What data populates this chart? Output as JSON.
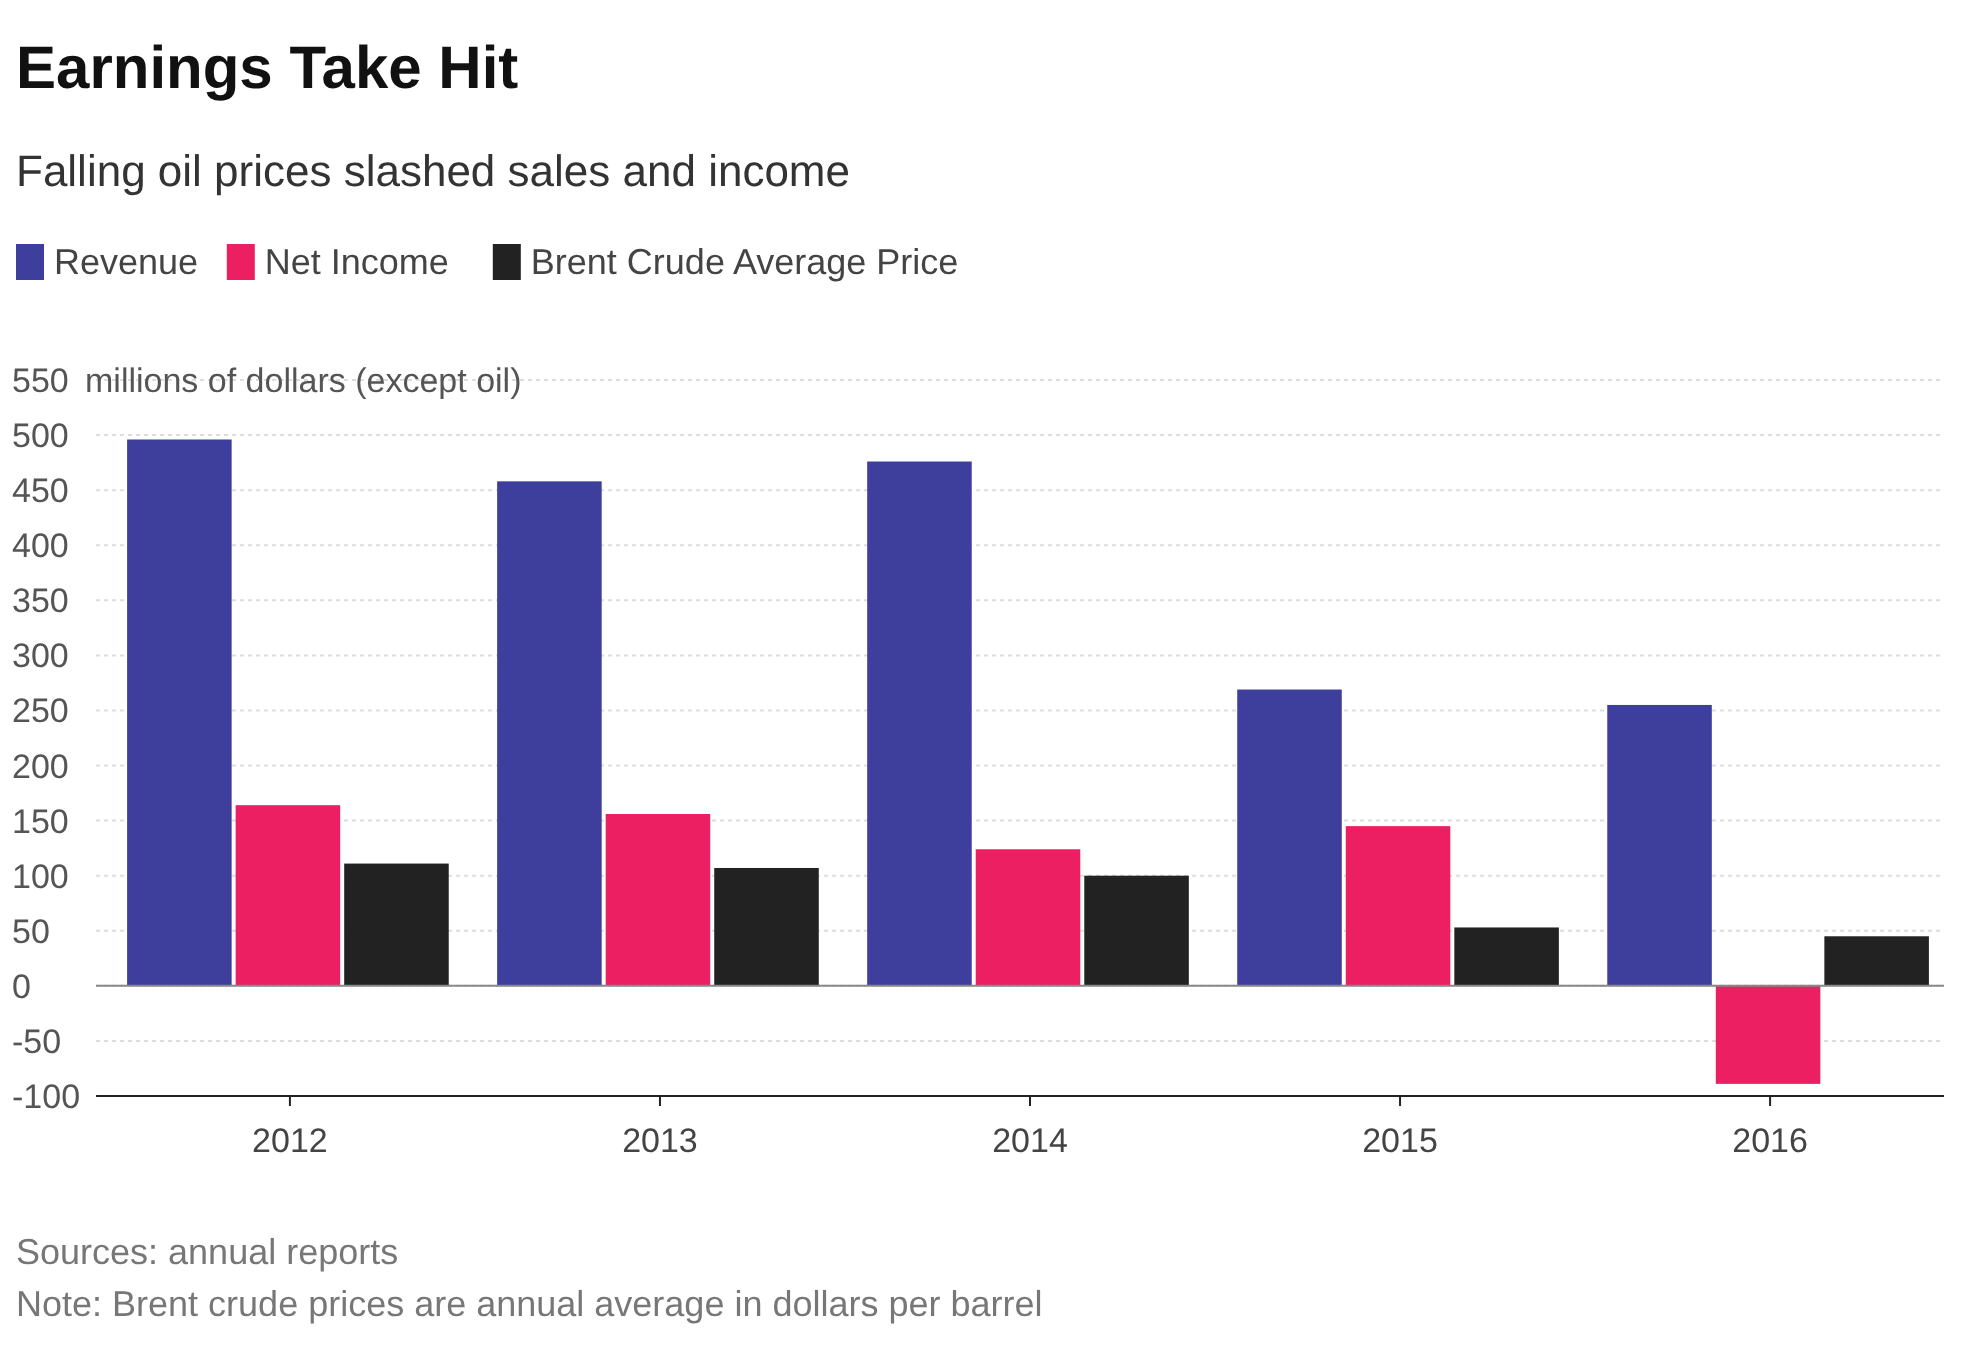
{
  "chart_data": {
    "type": "bar",
    "title": "Earnings Take Hit",
    "subtitle": "Falling oil prices slashed sales and income",
    "ylabel": "millions of dollars (except oil)",
    "categories": [
      "2012",
      "2013",
      "2014",
      "2015",
      "2016"
    ],
    "series": [
      {
        "name": "Revenue",
        "color": "#3e3f9c",
        "values": [
          496,
          458,
          476,
          269,
          255
        ]
      },
      {
        "name": "Net Income",
        "color": "#ec1f63",
        "values": [
          164,
          156,
          124,
          145,
          -89
        ]
      },
      {
        "name": "Brent Crude Average Price",
        "color": "#222222",
        "values": [
          111,
          107,
          100,
          53,
          45
        ]
      }
    ],
    "ylim": [
      -100,
      550
    ],
    "yticks": [
      -100,
      -50,
      0,
      50,
      100,
      150,
      200,
      250,
      300,
      350,
      400,
      450,
      500,
      550
    ],
    "grid": "y",
    "legend": "top left",
    "annotations": [
      "Sources: annual reports",
      "Note: Brent crude prices are annual average in dollars per barrel"
    ]
  }
}
